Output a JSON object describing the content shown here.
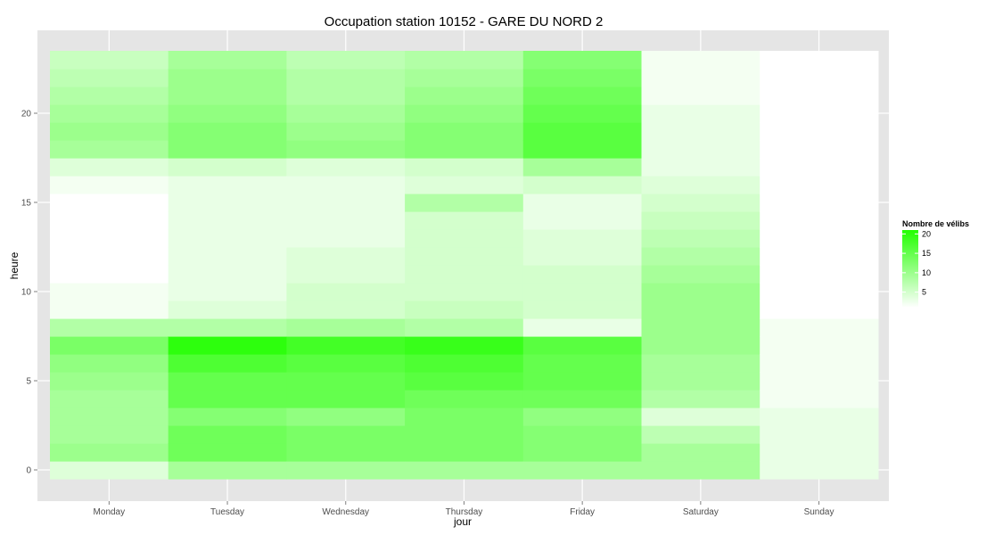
{
  "chart_data": {
    "type": "heatmap",
    "title": "Occupation station 10152 - GARE DU NORD 2",
    "xlabel": "jour",
    "ylabel": "heure",
    "categories": [
      "Monday",
      "Tuesday",
      "Wednesday",
      "Thursday",
      "Friday",
      "Saturday",
      "Sunday"
    ],
    "y": [
      0,
      1,
      2,
      3,
      4,
      5,
      6,
      7,
      8,
      9,
      10,
      11,
      12,
      13,
      14,
      15,
      16,
      17,
      18,
      19,
      20,
      21,
      22,
      23
    ],
    "ylim": [
      -0.5,
      23.5
    ],
    "y_ticks": [
      0,
      5,
      10,
      15,
      20
    ],
    "grid": true,
    "legend": {
      "title": "Nombre de vélibs",
      "position": "right",
      "ticks": [
        5,
        10,
        15,
        20
      ],
      "range": [
        1,
        21
      ]
    },
    "colors": {
      "low": "#ffffff",
      "high": "#22ff00",
      "panel": "#e5e5e5",
      "grid": "#ffffff"
    },
    "values": [
      [
        4,
        10,
        9,
        9,
        9,
        10,
        11,
        13,
        8,
        2,
        2,
        1,
        1,
        1,
        1,
        1,
        2,
        4,
        9,
        10,
        9,
        8,
        7,
        6
      ],
      [
        9,
        14,
        14,
        12,
        15,
        15,
        17,
        20,
        8,
        4,
        3,
        3,
        3,
        3,
        3,
        3,
        3,
        5,
        12,
        12,
        11,
        10,
        10,
        9
      ],
      [
        9,
        13,
        13,
        11,
        15,
        15,
        16,
        18,
        9,
        5,
        5,
        4,
        4,
        3,
        3,
        3,
        3,
        4,
        11,
        10,
        9,
        8,
        8,
        7
      ],
      [
        9,
        13,
        13,
        13,
        14,
        16,
        17,
        19,
        8,
        6,
        5,
        5,
        5,
        5,
        5,
        8,
        4,
        5,
        12,
        12,
        11,
        10,
        9,
        8
      ],
      [
        9,
        12,
        12,
        11,
        14,
        15,
        15,
        16,
        3,
        5,
        5,
        5,
        4,
        4,
        3,
        3,
        5,
        9,
        16,
        16,
        15,
        14,
        13,
        12
      ],
      [
        9,
        9,
        7,
        4,
        8,
        9,
        9,
        10,
        10,
        10,
        10,
        9,
        8,
        7,
        6,
        5,
        4,
        3,
        3,
        3,
        3,
        2,
        2,
        2
      ],
      [
        3,
        3,
        3,
        3,
        2,
        2,
        2,
        2,
        2,
        1,
        1,
        1,
        1,
        1,
        1,
        1,
        1,
        1,
        1,
        1,
        1,
        1,
        1,
        1
      ]
    ]
  }
}
